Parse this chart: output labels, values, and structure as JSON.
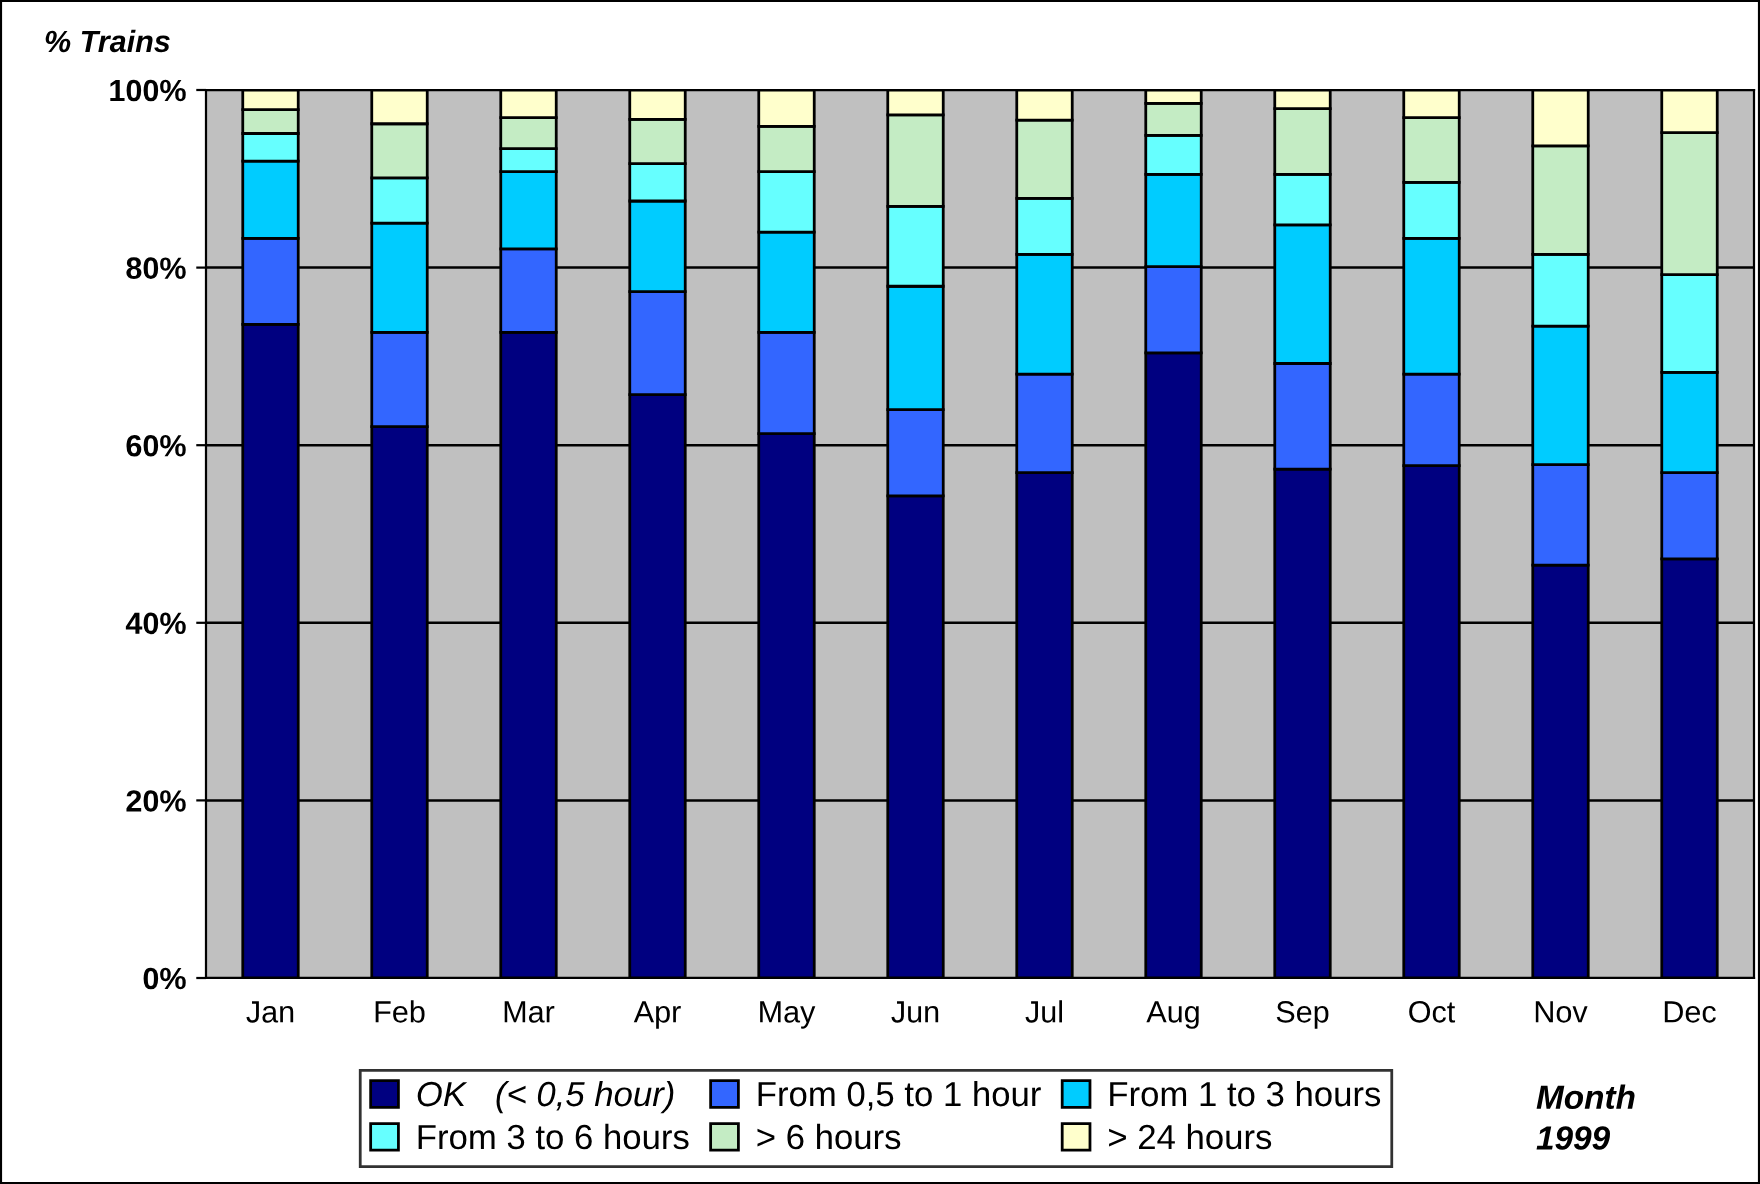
{
  "chart_data": {
    "type": "bar",
    "stacked": true,
    "title": "% Trains",
    "xlabel": "Month\n1999",
    "categories": [
      "Jan",
      "Feb",
      "Mar",
      "Apr",
      "May",
      "Jun",
      "Jul",
      "Aug",
      "Sep",
      "Oct",
      "Nov",
      "Dec"
    ],
    "series": [
      {
        "name": "OK   (< 0,5 hour)",
        "color": "#000080",
        "values": [
          73.6,
          62.1,
          72.7,
          65.7,
          61.3,
          54.3,
          56.9,
          70.4,
          57.3,
          57.7,
          46.5,
          47.2
        ]
      },
      {
        "name": "From 0,5 to 1 hour",
        "color": "#3366ff",
        "values": [
          9.7,
          10.6,
          9.4,
          11.6,
          11.4,
          9.7,
          11.1,
          9.7,
          11.9,
          10.3,
          11.3,
          9.7
        ]
      },
      {
        "name": "From 1 to 3 hours",
        "color": "#00ccff",
        "values": [
          8.7,
          12.3,
          8.7,
          10.2,
          11.3,
          13.9,
          13.5,
          10.4,
          15.6,
          15.3,
          15.6,
          11.3
        ]
      },
      {
        "name": "From 3 to 6 hours",
        "color": "#66ffff",
        "values": [
          3.1,
          5.1,
          2.6,
          4.2,
          6.8,
          9.0,
          6.3,
          4.4,
          5.7,
          6.3,
          8.1,
          11.0
        ]
      },
      {
        "name": "> 6 hours",
        "color": "#c4ecc4",
        "values": [
          2.7,
          6.1,
          3.5,
          5.0,
          5.1,
          10.3,
          8.8,
          3.6,
          7.4,
          7.3,
          12.2,
          16.0
        ]
      },
      {
        "name": "> 24 hours",
        "color": "#ffffcc",
        "values": [
          2.2,
          3.8,
          3.1,
          3.3,
          4.1,
          2.8,
          3.4,
          1.5,
          2.1,
          3.1,
          6.3,
          4.8
        ]
      }
    ],
    "ylim": [
      0,
      100
    ],
    "yticks": [
      {
        "value": 0,
        "label": "0%"
      },
      {
        "value": 20,
        "label": "20%"
      },
      {
        "value": 40,
        "label": "40%"
      },
      {
        "value": 60,
        "label": "60%"
      },
      {
        "value": 80,
        "label": "80%"
      },
      {
        "value": 100,
        "label": "100%"
      }
    ],
    "grid": "y",
    "legend": "bottom"
  }
}
